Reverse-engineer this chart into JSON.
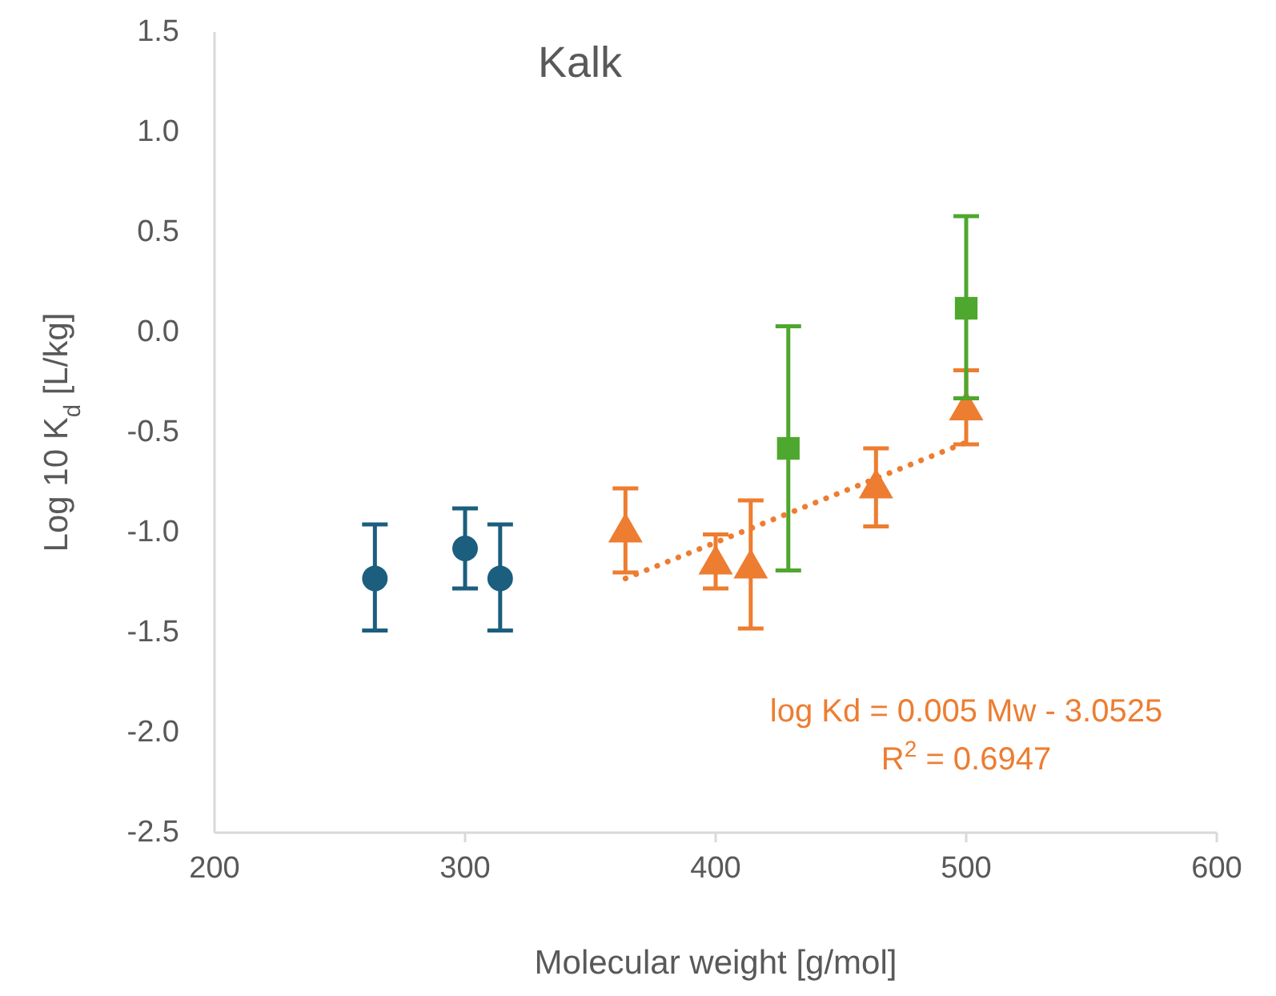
{
  "chart_data": {
    "type": "scatter",
    "title": "Kalk",
    "xlabel": "Molecular weight [g/mol]",
    "ylabel": "Log 10 K$_{d}$ [L/kg]",
    "xlim": [
      200,
      600
    ],
    "xticks": [
      200,
      300,
      400,
      500,
      600
    ],
    "ylim": [
      -2.5,
      1.5
    ],
    "yticks": [
      {
        "value": -2.5,
        "label": "-2.5"
      },
      {
        "value": -2,
        "label": "-2.0"
      },
      {
        "value": -1.5,
        "label": "-1.5"
      },
      {
        "value": -1,
        "label": "-1.0"
      },
      {
        "value": -0.5,
        "label": "-0.5"
      },
      {
        "value": 0,
        "label": "0.0"
      },
      {
        "value": 0.5,
        "label": "0.5"
      },
      {
        "value": 1,
        "label": "1.0"
      },
      {
        "value": 1.5,
        "label": "1.5"
      }
    ],
    "grid": false,
    "series": [
      {
        "type": "scatter",
        "marker": "circle",
        "color": "#1b5e7e",
        "x": [
          264,
          300,
          314
        ],
        "values": [
          -1.23,
          -1.08,
          -1.23
        ],
        "errors": [
          [
            -1.49,
            -0.96
          ],
          [
            -1.28,
            -0.88
          ],
          [
            -1.49,
            -0.96
          ]
        ]
      },
      {
        "type": "scatter",
        "marker": "triangle",
        "color": "#ed7d31",
        "x": [
          364,
          400,
          414,
          464,
          500
        ],
        "values": [
          -1.0,
          -1.16,
          -1.18,
          -0.78,
          -0.39
        ],
        "errors": [
          [
            -1.2,
            -0.78
          ],
          [
            -1.28,
            -1.01
          ],
          [
            -1.48,
            -0.84
          ],
          [
            -0.97,
            -0.58
          ],
          [
            -0.56,
            -0.19
          ]
        ]
      },
      {
        "type": "scatter",
        "marker": "square",
        "color": "#4ea72e",
        "x": [
          429,
          500
        ],
        "values": [
          -0.58,
          0.12
        ],
        "errors": [
          [
            -1.19,
            0.03
          ],
          [
            -0.33,
            0.58
          ]
        ]
      },
      {
        "type": "line",
        "marker": "none",
        "line_style": "dotted",
        "color": "#ed7d31",
        "x": [
          364,
          500
        ],
        "values": [
          -1.23,
          -0.55
        ]
      }
    ],
    "annotations": [
      "log Kd = 0.005 Mw - 3.0525",
      "R$^{2}$ = 0.6947"
    ]
  }
}
